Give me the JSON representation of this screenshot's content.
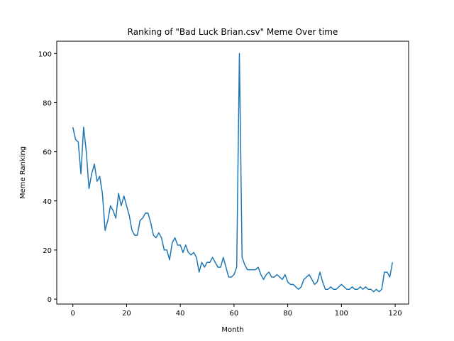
{
  "chart_data": {
    "type": "line",
    "title": "Ranking of \"Bad Luck Brian.csv\" Meme Over time",
    "xlabel": "Month",
    "ylabel": "Meme Ranking",
    "xlim": [
      -6,
      125
    ],
    "ylim": [
      -2,
      105
    ],
    "xticks": [
      0,
      20,
      40,
      60,
      80,
      100,
      120
    ],
    "yticks": [
      0,
      20,
      40,
      60,
      80,
      100
    ],
    "grid": false,
    "legend": "none",
    "series": [
      {
        "color": "#1f77b4",
        "x": [
          0,
          1,
          2,
          3,
          4,
          5,
          6,
          7,
          8,
          9,
          10,
          11,
          12,
          13,
          14,
          15,
          16,
          17,
          18,
          19,
          20,
          21,
          22,
          23,
          24,
          25,
          26,
          27,
          28,
          29,
          30,
          31,
          32,
          33,
          34,
          35,
          36,
          37,
          38,
          39,
          40,
          41,
          42,
          43,
          44,
          45,
          46,
          47,
          48,
          49,
          50,
          51,
          52,
          53,
          54,
          55,
          56,
          57,
          58,
          59,
          60,
          61,
          62,
          63,
          64,
          65,
          66,
          67,
          68,
          69,
          70,
          71,
          72,
          73,
          74,
          75,
          76,
          77,
          78,
          79,
          80,
          81,
          82,
          83,
          84,
          85,
          86,
          87,
          88,
          89,
          90,
          91,
          92,
          93,
          94,
          95,
          96,
          97,
          98,
          99,
          100,
          101,
          102,
          103,
          104,
          105,
          106,
          107,
          108,
          109,
          110,
          111,
          112,
          113,
          114,
          115,
          116,
          117,
          118,
          119
        ],
        "y": [
          70,
          65,
          64,
          51,
          70,
          60,
          45,
          51,
          55,
          48,
          50,
          43,
          28,
          32,
          38,
          36,
          33,
          43,
          38,
          42,
          38,
          34,
          28,
          26,
          26,
          32,
          33,
          35,
          35,
          31,
          26,
          25,
          27,
          25,
          20,
          20,
          16,
          23,
          25,
          22,
          22,
          19,
          22,
          19,
          18,
          19,
          17,
          11,
          15,
          13,
          15,
          15,
          17,
          15,
          13,
          13,
          17,
          13,
          9,
          9,
          10,
          13,
          100,
          17,
          14,
          12,
          12,
          12,
          12,
          13,
          10,
          8,
          10,
          11,
          9,
          9,
          10,
          9,
          8,
          10,
          7,
          6,
          6,
          5,
          4,
          5,
          8,
          9,
          10,
          8,
          6,
          7,
          11,
          7,
          4,
          4,
          5,
          4,
          4,
          5,
          6,
          5,
          4,
          4,
          5,
          4,
          4,
          5,
          4,
          5,
          4,
          4,
          3,
          4,
          3,
          4,
          11,
          11,
          9,
          15
        ]
      }
    ]
  }
}
